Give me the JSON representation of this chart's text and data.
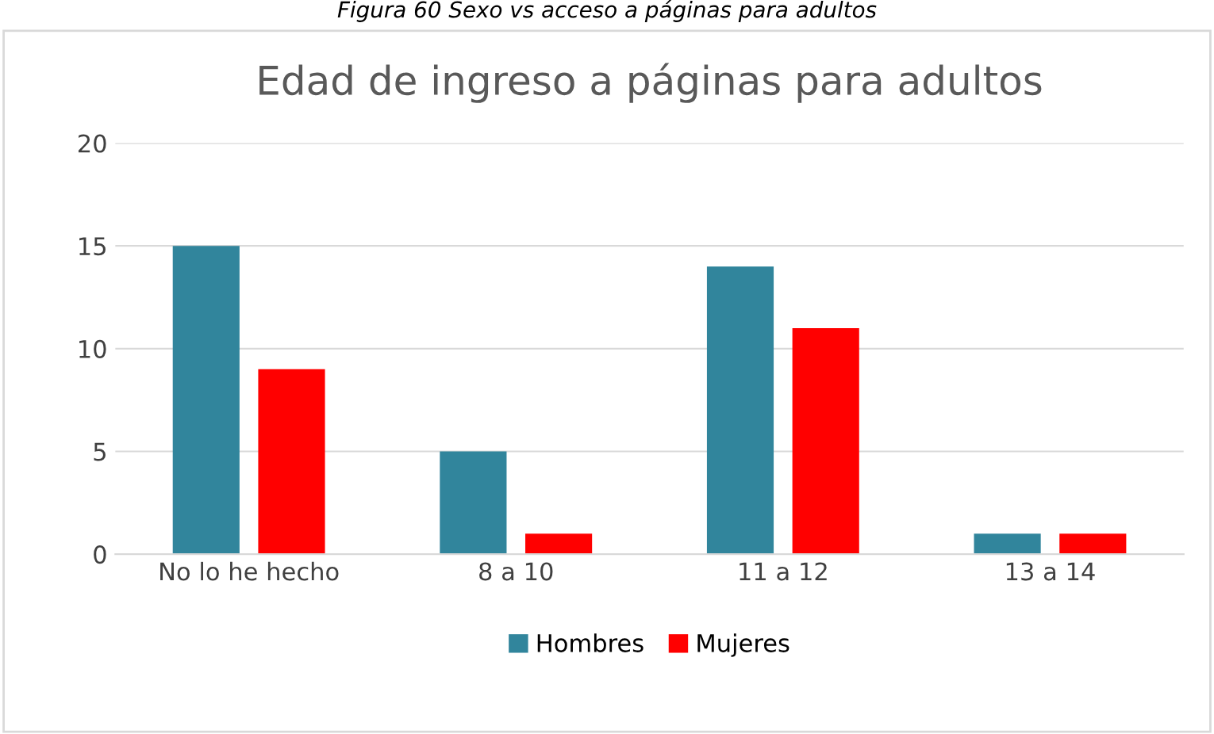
{
  "chart_data": {
    "type": "bar",
    "title": "Edad de ingreso a páginas para adultos",
    "annotations": [
      "Figura 60 Sexo vs acceso a páginas para adultos"
    ],
    "categories": [
      "No lo he hecho",
      "8 a 10",
      "11 a 12",
      "13 a 14"
    ],
    "series": [
      {
        "name": "Hombres",
        "color": "#31859c",
        "values": [
          15,
          5,
          14,
          1
        ]
      },
      {
        "name": "Mujeres",
        "color": "#ff0000",
        "values": [
          9,
          1,
          11,
          1
        ]
      }
    ],
    "ylim": [
      0,
      20
    ],
    "yticks": [
      0,
      5,
      10,
      15,
      20
    ],
    "grid": "y",
    "legend": "bottom"
  }
}
